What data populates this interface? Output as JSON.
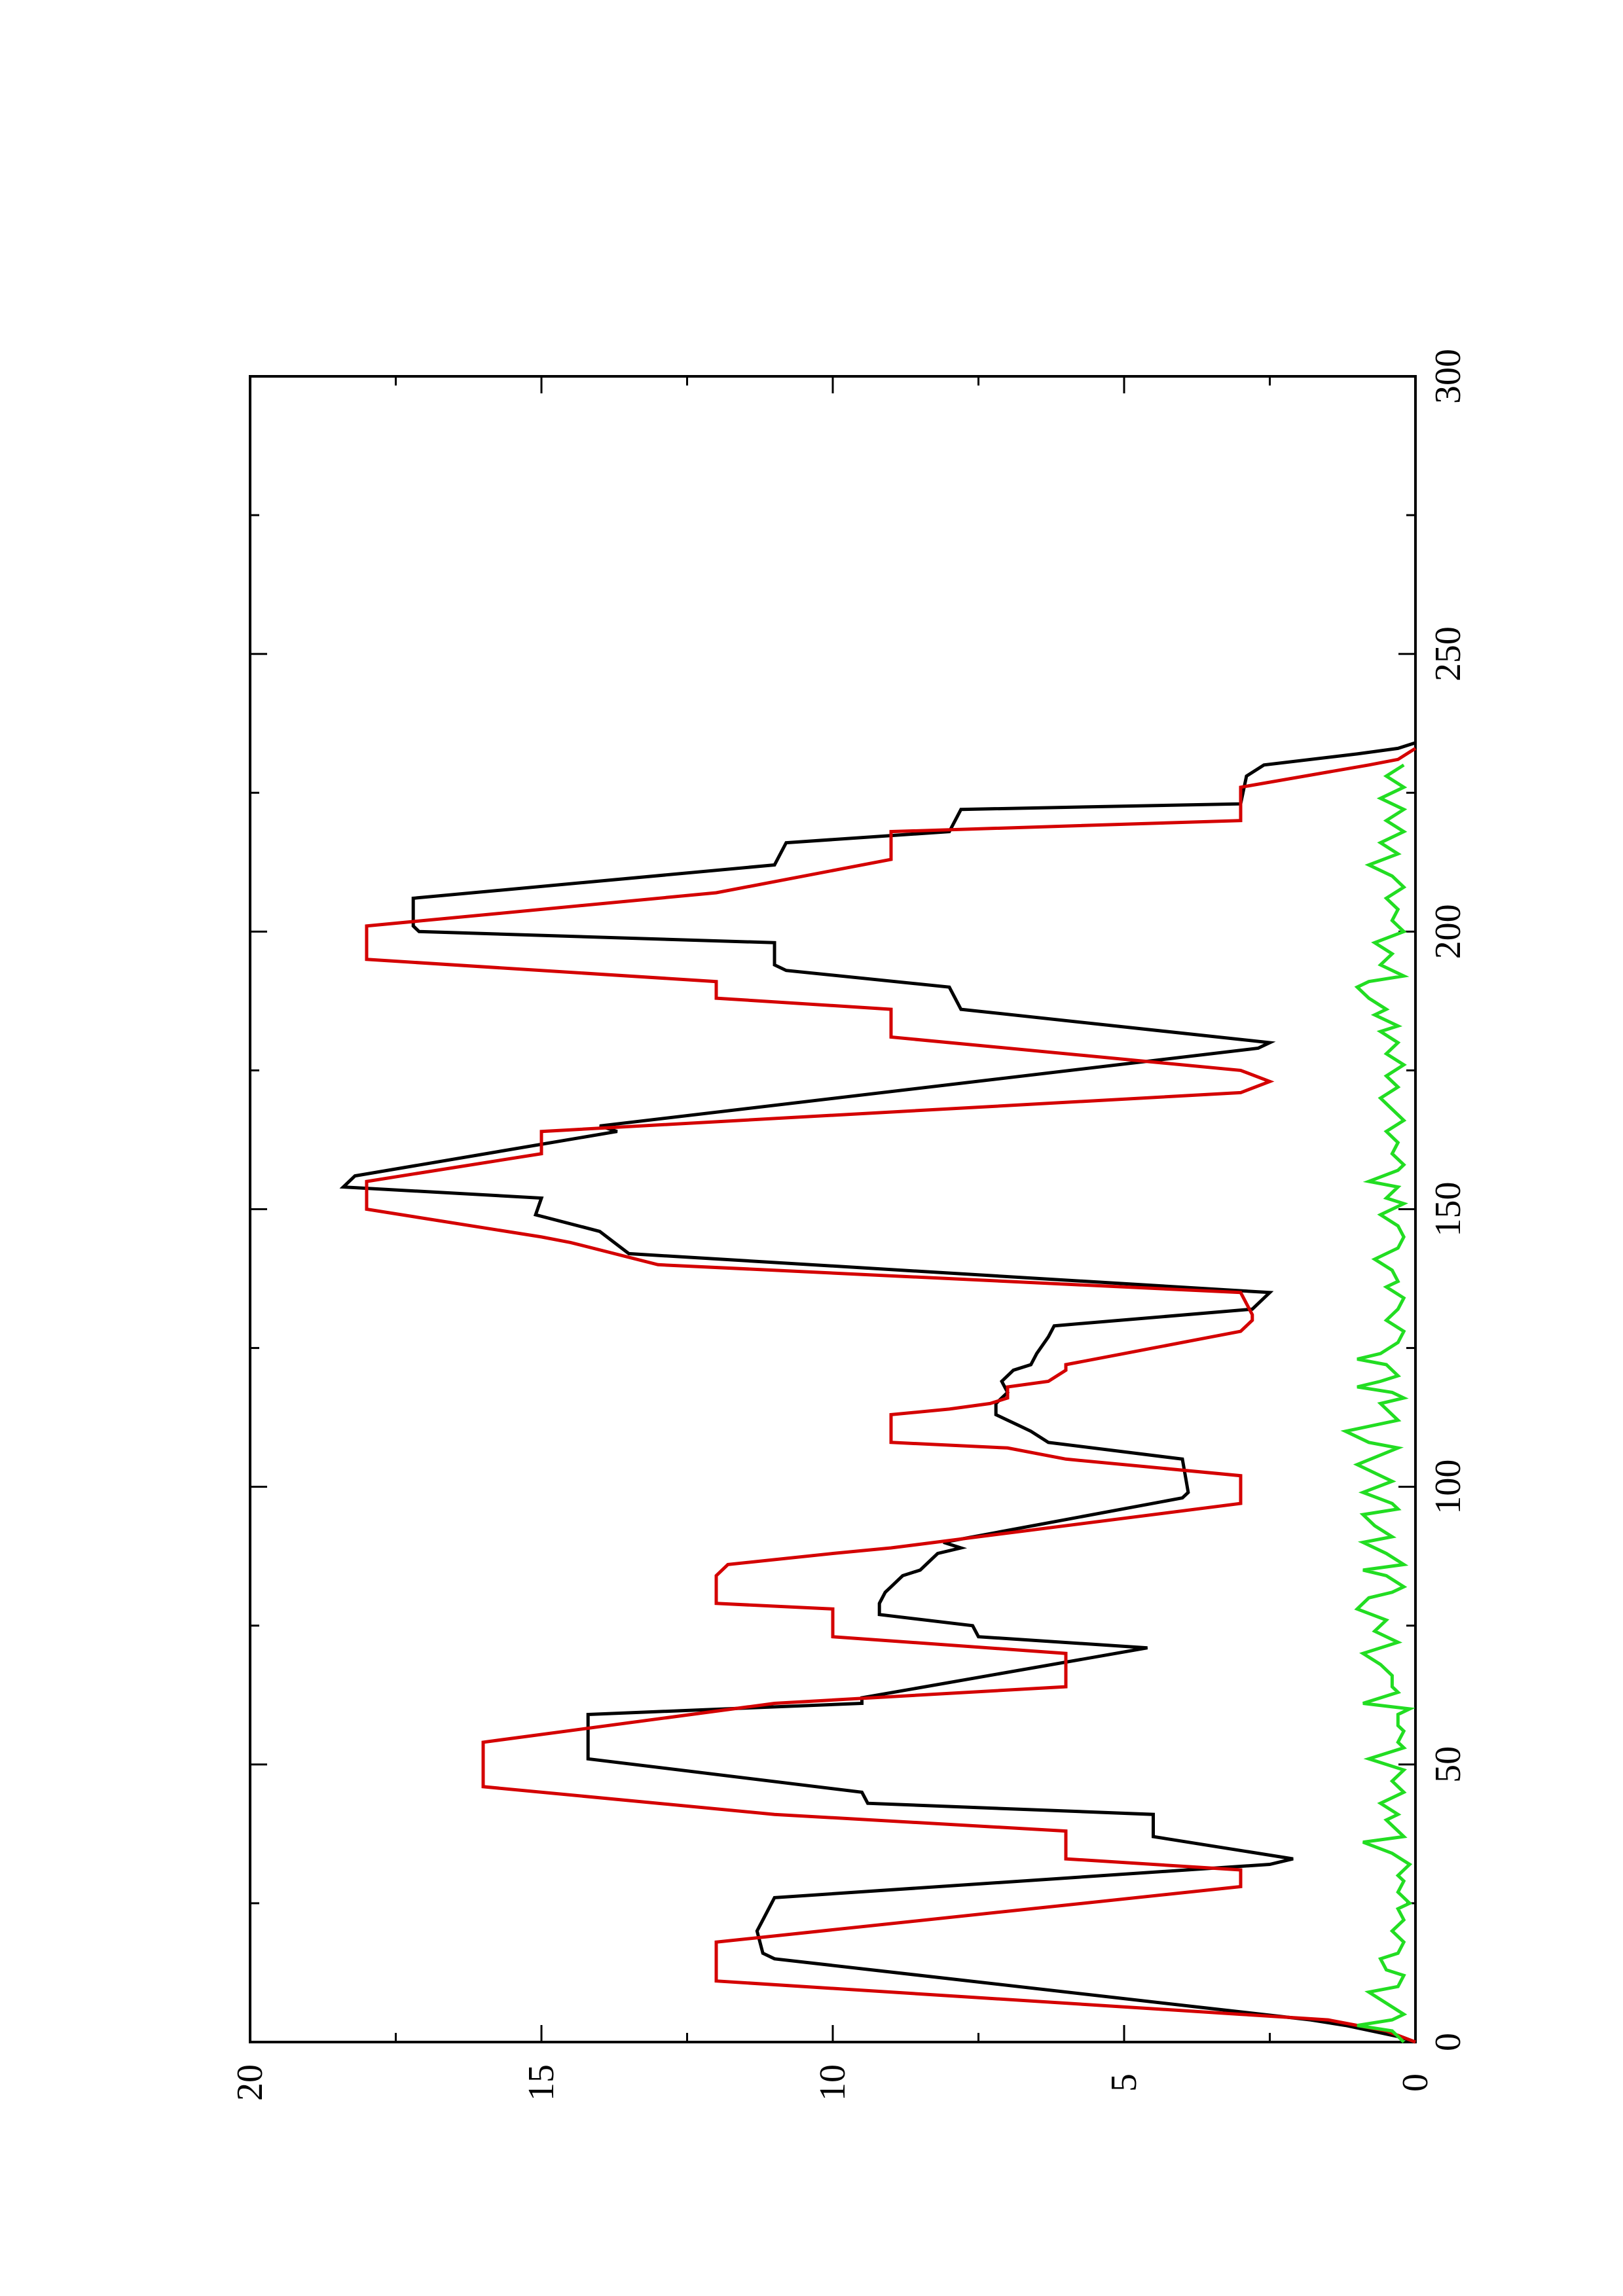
{
  "chart_data": {
    "type": "line",
    "orientation": "rotated-90-ccw",
    "title": "",
    "xlabel": "",
    "ylabel": "",
    "xlim": [
      0,
      300
    ],
    "ylim": [
      0,
      20
    ],
    "x_ticks": [
      0,
      50,
      100,
      150,
      200,
      250,
      300
    ],
    "y_ticks": [
      0,
      5,
      10,
      15,
      20
    ],
    "x_tick_labels": [
      "0",
      "50",
      "100",
      "150",
      "200",
      "250",
      "300"
    ],
    "y_tick_labels": [
      "0",
      "5",
      "10",
      "15",
      "20"
    ],
    "grid": false,
    "legend": "none",
    "series": [
      {
        "color": "#000000",
        "points": [
          [
            0,
            0
          ],
          [
            1,
            0.3
          ],
          [
            3,
            1.2
          ],
          [
            4,
            1.8
          ],
          [
            15,
            11.0
          ],
          [
            16,
            11.2
          ],
          [
            20,
            11.3
          ],
          [
            22,
            11.2
          ],
          [
            26,
            11.0
          ],
          [
            32,
            2.5
          ],
          [
            33,
            2.1
          ],
          [
            37,
            4.5
          ],
          [
            41,
            4.5
          ],
          [
            43,
            9.4
          ],
          [
            45,
            9.5
          ],
          [
            51,
            14.2
          ],
          [
            59,
            14.2
          ],
          [
            61,
            9.5
          ],
          [
            62,
            9.5
          ],
          [
            71,
            4.6
          ],
          [
            73,
            7.5
          ],
          [
            75,
            7.6
          ],
          [
            77,
            9.2
          ],
          [
            79,
            9.2
          ],
          [
            81,
            9.1
          ],
          [
            82,
            9.0
          ],
          [
            84,
            8.8
          ],
          [
            85,
            8.5
          ],
          [
            86,
            8.4
          ],
          [
            88,
            8.2
          ],
          [
            89,
            7.8
          ],
          [
            90,
            8.1
          ],
          [
            98,
            4.0
          ],
          [
            99,
            3.9
          ],
          [
            105,
            4.0
          ],
          [
            108,
            6.3
          ],
          [
            110,
            6.6
          ],
          [
            111,
            6.8
          ],
          [
            112,
            7.0
          ],
          [
            113,
            7.2
          ],
          [
            115,
            7.2
          ],
          [
            117,
            7.0
          ],
          [
            119,
            7.1
          ],
          [
            121,
            6.9
          ],
          [
            122,
            6.6
          ],
          [
            124,
            6.5
          ],
          [
            127,
            6.3
          ],
          [
            129,
            6.2
          ],
          [
            132,
            2.8
          ],
          [
            135,
            2.5
          ],
          [
            142,
            13.5
          ],
          [
            146,
            14.0
          ],
          [
            149,
            15.1
          ],
          [
            152,
            15.0
          ],
          [
            154,
            18.4
          ],
          [
            156,
            18.2
          ],
          [
            164,
            13.7
          ],
          [
            165,
            14.0
          ],
          [
            179,
            2.7
          ],
          [
            180,
            2.5
          ],
          [
            186,
            7.8
          ],
          [
            190,
            8.0
          ],
          [
            193,
            10.8
          ],
          [
            194,
            11.0
          ],
          [
            198,
            11.0
          ],
          [
            200,
            17.1
          ],
          [
            201,
            17.2
          ],
          [
            206,
            17.2
          ],
          [
            212,
            11.0
          ],
          [
            216,
            10.8
          ],
          [
            218,
            8.0
          ],
          [
            222,
            7.8
          ],
          [
            223,
            3.0
          ],
          [
            228,
            2.9
          ],
          [
            230,
            2.6
          ],
          [
            232,
            1.0
          ],
          [
            233,
            0.3
          ],
          [
            234,
            0.0
          ]
        ]
      },
      {
        "color": "#d40000",
        "points": [
          [
            0,
            0
          ],
          [
            2,
            0.5
          ],
          [
            3,
            1.0
          ],
          [
            4,
            1.5
          ],
          [
            5,
            3.0
          ],
          [
            11,
            12.0
          ],
          [
            18,
            12.0
          ],
          [
            28,
            3.0
          ],
          [
            31,
            3.0
          ],
          [
            33,
            6.0
          ],
          [
            38,
            6.0
          ],
          [
            41,
            11.0
          ],
          [
            46,
            16.0
          ],
          [
            54,
            16.0
          ],
          [
            61,
            11.0
          ],
          [
            64,
            6.0
          ],
          [
            70,
            6.0
          ],
          [
            73,
            10.0
          ],
          [
            78,
            10.0
          ],
          [
            79,
            12.0
          ],
          [
            84,
            12.0
          ],
          [
            86,
            11.8
          ],
          [
            88,
            10.0
          ],
          [
            89,
            9.0
          ],
          [
            97,
            3.0
          ],
          [
            102,
            3.0
          ],
          [
            105,
            6.0
          ],
          [
            107,
            7.0
          ],
          [
            108,
            9.0
          ],
          [
            111,
            9.0
          ],
          [
            113,
            9.0
          ],
          [
            114,
            8.0
          ],
          [
            115,
            7.3
          ],
          [
            116,
            7.0
          ],
          [
            118,
            7.0
          ],
          [
            119,
            6.3
          ],
          [
            121,
            6.0
          ],
          [
            122,
            6.0
          ],
          [
            124,
            5.0
          ],
          [
            125,
            4.5
          ],
          [
            127,
            3.5
          ],
          [
            128,
            3.0
          ],
          [
            130,
            2.8
          ],
          [
            131,
            2.8
          ],
          [
            135,
            3.0
          ],
          [
            140,
            13.0
          ],
          [
            144,
            14.5
          ],
          [
            145,
            15.0
          ],
          [
            150,
            18.0
          ],
          [
            155,
            18.0
          ],
          [
            160,
            15.0
          ],
          [
            164,
            15.0
          ],
          [
            171,
            3.0
          ],
          [
            173,
            2.5
          ],
          [
            175,
            3.0
          ],
          [
            181,
            9.0
          ],
          [
            186,
            9.0
          ],
          [
            188,
            12.0
          ],
          [
            191,
            12.0
          ],
          [
            195,
            18.0
          ],
          [
            201,
            18.0
          ],
          [
            207,
            12.0
          ],
          [
            213,
            9.0
          ],
          [
            218,
            9.0
          ],
          [
            220,
            3.0
          ],
          [
            226,
            3.0
          ],
          [
            230,
            0.8
          ],
          [
            231,
            0.3
          ],
          [
            233,
            0.0
          ]
        ]
      },
      {
        "color": "#22dd22",
        "points": [
          [
            0,
            0.2
          ],
          [
            2,
            0.4
          ],
          [
            3,
            1.0
          ],
          [
            4,
            0.4
          ],
          [
            5,
            0.2
          ],
          [
            7,
            0.5
          ],
          [
            9,
            0.8
          ],
          [
            10,
            0.3
          ],
          [
            12,
            0.2
          ],
          [
            13,
            0.5
          ],
          [
            15,
            0.6
          ],
          [
            16,
            0.3
          ],
          [
            18,
            0.2
          ],
          [
            20,
            0.4
          ],
          [
            22,
            0.2
          ],
          [
            24,
            0.3
          ],
          [
            25,
            0.1
          ],
          [
            27,
            0.3
          ],
          [
            29,
            0.2
          ],
          [
            30,
            0.3
          ],
          [
            32,
            0.1
          ],
          [
            34,
            0.4
          ],
          [
            36,
            0.9
          ],
          [
            37,
            0.2
          ],
          [
            38,
            0.3
          ],
          [
            40,
            0.5
          ],
          [
            41,
            0.3
          ],
          [
            43,
            0.6
          ],
          [
            45,
            0.2
          ],
          [
            47,
            0.4
          ],
          [
            48,
            0.3
          ],
          [
            49,
            0.2
          ],
          [
            51,
            0.8
          ],
          [
            53,
            0.2
          ],
          [
            54,
            0.3
          ],
          [
            56,
            0.2
          ],
          [
            57,
            0.3
          ],
          [
            59,
            0.3
          ],
          [
            60,
            0.1
          ],
          [
            61,
            0.9
          ],
          [
            63,
            0.3
          ],
          [
            64,
            0.4
          ],
          [
            66,
            0.4
          ],
          [
            68,
            0.6
          ],
          [
            70,
            0.9
          ],
          [
            72,
            0.3
          ],
          [
            74,
            0.7
          ],
          [
            76,
            0.5
          ],
          [
            78,
            1.0
          ],
          [
            80,
            0.8
          ],
          [
            81,
            0.4
          ],
          [
            82,
            0.2
          ],
          [
            84,
            0.5
          ],
          [
            85,
            0.9
          ],
          [
            86,
            0.2
          ],
          [
            88,
            0.5
          ],
          [
            90,
            0.9
          ],
          [
            91,
            0.4
          ],
          [
            93,
            0.7
          ],
          [
            95,
            0.9
          ],
          [
            96,
            0.3
          ],
          [
            97,
            0.4
          ],
          [
            99,
            0.9
          ],
          [
            101,
            0.4
          ],
          [
            104,
            1.0
          ],
          [
            107,
            0.3
          ],
          [
            108,
            0.8
          ],
          [
            110,
            1.2
          ],
          [
            112,
            0.3
          ],
          [
            113,
            0.4
          ],
          [
            115,
            0.6
          ],
          [
            116,
            0.2
          ],
          [
            117,
            0.4
          ],
          [
            118,
            1.0
          ],
          [
            119,
            0.6
          ],
          [
            120,
            0.3
          ],
          [
            122,
            0.5
          ],
          [
            123,
            1.0
          ],
          [
            124,
            0.6
          ],
          [
            126,
            0.3
          ],
          [
            128,
            0.2
          ],
          [
            130,
            0.5
          ],
          [
            132,
            0.3
          ],
          [
            134,
            0.2
          ],
          [
            136,
            0.5
          ],
          [
            137,
            0.3
          ],
          [
            139,
            0.4
          ],
          [
            141,
            0.7
          ],
          [
            143,
            0.3
          ],
          [
            145,
            0.2
          ],
          [
            147,
            0.3
          ],
          [
            149,
            0.6
          ],
          [
            151,
            0.2
          ],
          [
            152,
            0.5
          ],
          [
            154,
            0.3
          ],
          [
            155,
            0.8
          ],
          [
            157,
            0.3
          ],
          [
            158,
            0.2
          ],
          [
            160,
            0.4
          ],
          [
            162,
            0.3
          ],
          [
            164,
            0.5
          ],
          [
            166,
            0.2
          ],
          [
            168,
            0.4
          ],
          [
            170,
            0.6
          ],
          [
            172,
            0.3
          ],
          [
            174,
            0.5
          ],
          [
            176,
            0.2
          ],
          [
            178,
            0.5
          ],
          [
            180,
            0.3
          ],
          [
            182,
            0.6
          ],
          [
            183,
            0.3
          ],
          [
            185,
            0.7
          ],
          [
            186,
            0.5
          ],
          [
            188,
            0.8
          ],
          [
            190,
            1.0
          ],
          [
            191,
            0.8
          ],
          [
            192,
            0.2
          ],
          [
            194,
            0.6
          ],
          [
            196,
            0.4
          ],
          [
            198,
            0.7
          ],
          [
            200,
            0.2
          ],
          [
            202,
            0.4
          ],
          [
            204,
            0.3
          ],
          [
            206,
            0.5
          ],
          [
            208,
            0.2
          ],
          [
            210,
            0.4
          ],
          [
            212,
            0.8
          ],
          [
            214,
            0.3
          ],
          [
            216,
            0.6
          ],
          [
            218,
            0.2
          ],
          [
            220,
            0.5
          ],
          [
            222,
            0.2
          ],
          [
            224,
            0.6
          ],
          [
            226,
            0.2
          ],
          [
            228,
            0.5
          ],
          [
            230,
            0.2
          ]
        ]
      }
    ]
  }
}
